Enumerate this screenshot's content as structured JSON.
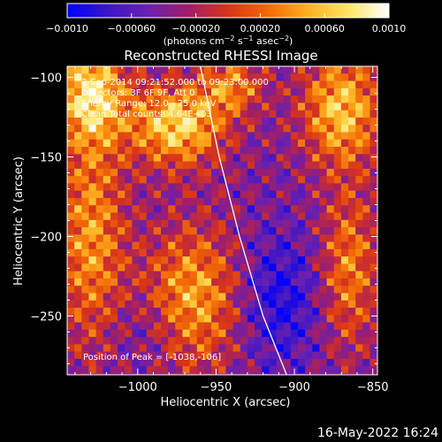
{
  "chart_data": {
    "type": "heatmap",
    "title": "Reconstructed RHESSI Image",
    "xlabel": "Heliocentric X (arcsec)",
    "ylabel": "Heliocentric Y (arcsec)",
    "xlim": [
      -1045,
      -847
    ],
    "ylim": [
      -287,
      -93
    ],
    "x_ticks": [
      -1000,
      -950,
      -900,
      -850
    ],
    "x_tick_labels": [
      "−1000",
      "−950",
      "−900",
      "−850"
    ],
    "y_ticks": [
      -250,
      -200,
      -150,
      -100
    ],
    "y_tick_labels": [
      "−250",
      "−200",
      "−150",
      "−100"
    ],
    "colorbar": {
      "range": [
        -0.001,
        0.001
      ],
      "ticks": [
        -0.001,
        -0.0006,
        -0.0002,
        0.0002,
        0.0006,
        0.001
      ],
      "tick_labels": [
        "−0.0010",
        "−0.00060",
        "−0.00020",
        "0.00020",
        "0.00060",
        "0.0010"
      ],
      "unit_parts": [
        "(photons cm",
        "−2",
        " s",
        "−1",
        " asec",
        "−2",
        ")"
      ],
      "colormap": [
        "#0000ff",
        "#3a16c8",
        "#6a20b0",
        "#a01e6a",
        "#d8341a",
        "#f26a08",
        "#ffb020",
        "#ffe666",
        "#ffffff"
      ]
    },
    "annotations": [
      "2-Sep-2014 09:21:52.000 to 09:23:00.000",
      "Detectors: 3F 6F 9F, Att 0",
      "Energy Range: 12.0 - 25.0 keV",
      "Clean     Total counts: 4.64E+03"
    ],
    "peak_label": "Position of Peak = [-1038,-106]",
    "limb_curve": [
      [
        -960,
        -93
      ],
      [
        -948,
        -150
      ],
      [
        -935,
        -200
      ],
      [
        -920,
        -250
      ],
      [
        -905,
        -287
      ]
    ],
    "grid": false
  },
  "timestamp": "16-May-2022 16:24"
}
